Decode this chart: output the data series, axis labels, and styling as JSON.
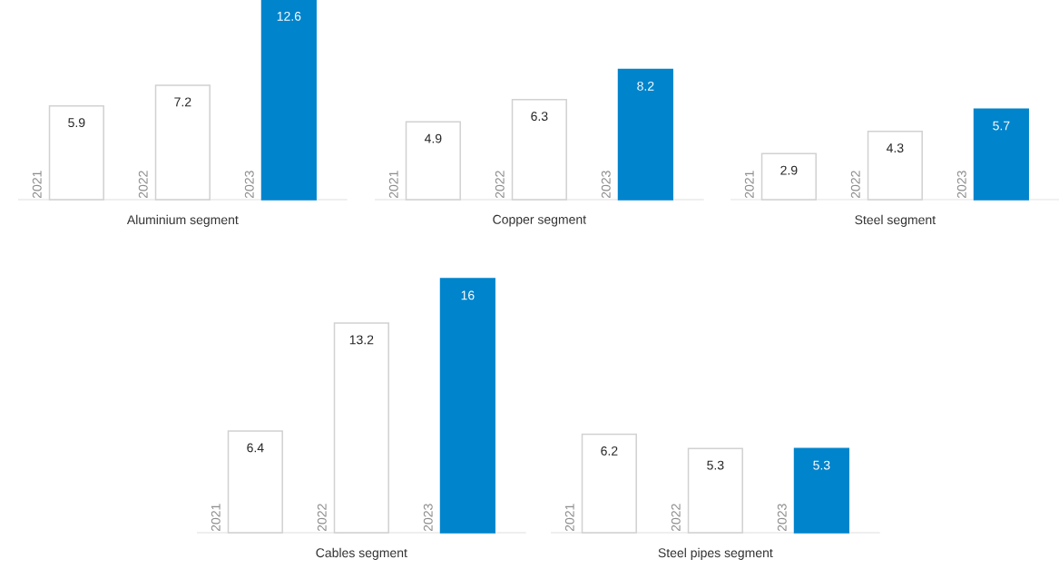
{
  "chart_data": [
    {
      "type": "bar",
      "xlabel": "Aluminium segment",
      "categories": [
        "2021",
        "2022",
        "2023"
      ],
      "values": [
        5.9,
        7.2,
        12.6
      ],
      "colors": [
        "#ffffff",
        "#ffffff",
        "#0084cc"
      ],
      "data_labels": true
    },
    {
      "type": "bar",
      "xlabel": "Copper segment",
      "categories": [
        "2021",
        "2022",
        "2023"
      ],
      "values": [
        4.9,
        6.3,
        8.2
      ],
      "colors": [
        "#ffffff",
        "#ffffff",
        "#0084cc"
      ],
      "data_labels": true
    },
    {
      "type": "bar",
      "xlabel": "Steel segment",
      "categories": [
        "2021",
        "2022",
        "2023"
      ],
      "values": [
        2.9,
        4.3,
        5.7
      ],
      "colors": [
        "#ffffff",
        "#ffffff",
        "#0084cc"
      ],
      "data_labels": true
    },
    {
      "type": "bar",
      "xlabel": "Cables segment",
      "categories": [
        "2021",
        "2022",
        "2023"
      ],
      "values": [
        6.4,
        13.2,
        16
      ],
      "colors": [
        "#ffffff",
        "#ffffff",
        "#0084cc"
      ],
      "data_labels": true
    },
    {
      "type": "bar",
      "xlabel": "Steel pipes segment",
      "categories": [
        "2021",
        "2022",
        "2023"
      ],
      "values": [
        6.2,
        5.3,
        5.3
      ],
      "colors": [
        "#ffffff",
        "#ffffff",
        "#0084cc"
      ],
      "data_labels": true
    }
  ]
}
